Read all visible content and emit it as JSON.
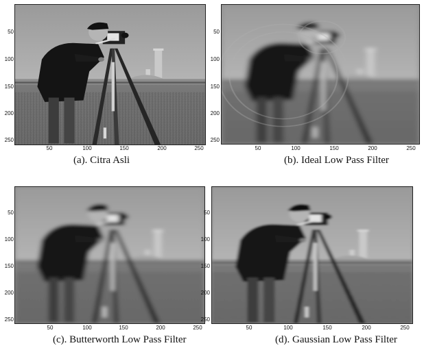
{
  "panels": [
    {
      "caption": "(a). Citra Asli",
      "image": "cameraman-original",
      "blur": "none",
      "y_ticks": [
        "50",
        "100",
        "150",
        "200",
        "250"
      ],
      "x_ticks": [
        "50",
        "100",
        "150",
        "200",
        "250"
      ]
    },
    {
      "caption": "(b). Ideal Low Pass Filter",
      "image": "cameraman-ideal-lowpass",
      "blur": "heavy-ringing",
      "y_ticks": [
        "50",
        "100",
        "150",
        "200",
        "250"
      ],
      "x_ticks": [
        "50",
        "100",
        "150",
        "200",
        "250"
      ]
    },
    {
      "caption": "(c). Butterworth Low Pass Filter",
      "image": "cameraman-butterworth-lowpass",
      "blur": "heavy",
      "y_ticks": [
        "50",
        "100",
        "150",
        "200",
        "250"
      ],
      "x_ticks": [
        "50",
        "100",
        "150",
        "200",
        "250"
      ]
    },
    {
      "caption": "(d). Gaussian Low Pass Filter",
      "image": "cameraman-gaussian-lowpass",
      "blur": "moderate",
      "y_ticks": [
        "50",
        "100",
        "150",
        "200",
        "250"
      ],
      "x_ticks": [
        "50",
        "100",
        "150",
        "200",
        "250"
      ]
    }
  ]
}
